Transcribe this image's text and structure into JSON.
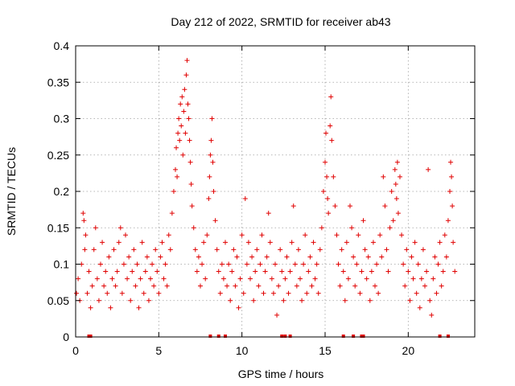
{
  "chart_data": {
    "type": "scatter",
    "title": "Day 212 of 2022, SRMTID for receiver ab43",
    "xlabel": "GPS time / hours",
    "ylabel": "SRMTID / TECUs",
    "xlim": [
      0,
      24
    ],
    "ylim": [
      0,
      0.4
    ],
    "xticks": [
      0,
      5,
      10,
      15,
      20
    ],
    "xtick_labels": [
      "0",
      "5",
      "10",
      "15",
      "20"
    ],
    "yticks": [
      0,
      0.05,
      0.1,
      0.15,
      0.2,
      0.25,
      0.3,
      0.35,
      0.4
    ],
    "ytick_labels": [
      "0",
      "0.05",
      "0.1",
      "0.15",
      "0.2",
      "0.25",
      "0.3",
      "0.35",
      "0.4"
    ],
    "grid": true,
    "marker": "+",
    "color": "#e00000",
    "series": [
      {
        "name": "SRMTID",
        "points": [
          [
            0.05,
            0.06
          ],
          [
            0.15,
            0.08
          ],
          [
            0.25,
            0.05
          ],
          [
            0.35,
            0.1
          ],
          [
            0.45,
            0.17
          ],
          [
            0.5,
            0.16
          ],
          [
            0.55,
            0.12
          ],
          [
            0.6,
            0.14
          ],
          [
            0.7,
            0.06
          ],
          [
            0.8,
            0.09
          ],
          [
            0.9,
            0.04
          ],
          [
            1.0,
            0.07
          ],
          [
            1.1,
            0.12
          ],
          [
            1.2,
            0.15
          ],
          [
            1.3,
            0.08
          ],
          [
            1.4,
            0.05
          ],
          [
            1.5,
            0.1
          ],
          [
            1.6,
            0.13
          ],
          [
            1.7,
            0.07
          ],
          [
            1.8,
            0.09
          ],
          [
            1.9,
            0.06
          ],
          [
            2.0,
            0.11
          ],
          [
            2.1,
            0.04
          ],
          [
            2.2,
            0.08
          ],
          [
            2.3,
            0.12
          ],
          [
            2.4,
            0.07
          ],
          [
            2.5,
            0.09
          ],
          [
            2.6,
            0.13
          ],
          [
            2.7,
            0.15
          ],
          [
            2.8,
            0.06
          ],
          [
            2.9,
            0.1
          ],
          [
            3.0,
            0.14
          ],
          [
            3.1,
            0.08
          ],
          [
            3.2,
            0.11
          ],
          [
            3.3,
            0.05
          ],
          [
            3.4,
            0.09
          ],
          [
            3.5,
            0.12
          ],
          [
            3.6,
            0.07
          ],
          [
            3.7,
            0.1
          ],
          [
            3.8,
            0.04
          ],
          [
            3.9,
            0.08
          ],
          [
            4.0,
            0.13
          ],
          [
            4.1,
            0.06
          ],
          [
            4.2,
            0.09
          ],
          [
            4.3,
            0.11
          ],
          [
            4.4,
            0.05
          ],
          [
            4.5,
            0.08
          ],
          [
            4.6,
            0.1
          ],
          [
            4.7,
            0.07
          ],
          [
            4.8,
            0.12
          ],
          [
            4.9,
            0.09
          ],
          [
            5.0,
            0.06
          ],
          [
            5.1,
            0.11
          ],
          [
            5.2,
            0.13
          ],
          [
            5.3,
            0.08
          ],
          [
            5.4,
            0.1
          ],
          [
            5.5,
            0.07
          ],
          [
            5.6,
            0.14
          ],
          [
            5.7,
            0.12
          ],
          [
            5.8,
            0.17
          ],
          [
            5.9,
            0.2
          ],
          [
            6.0,
            0.23
          ],
          [
            6.05,
            0.26
          ],
          [
            6.1,
            0.22
          ],
          [
            6.15,
            0.28
          ],
          [
            6.2,
            0.3
          ],
          [
            6.25,
            0.27
          ],
          [
            6.3,
            0.32
          ],
          [
            6.35,
            0.29
          ],
          [
            6.4,
            0.33
          ],
          [
            6.45,
            0.25
          ],
          [
            6.5,
            0.31
          ],
          [
            6.55,
            0.34
          ],
          [
            6.6,
            0.28
          ],
          [
            6.65,
            0.36
          ],
          [
            6.7,
            0.38
          ],
          [
            6.75,
            0.32
          ],
          [
            6.8,
            0.3
          ],
          [
            6.85,
            0.27
          ],
          [
            6.9,
            0.24
          ],
          [
            6.95,
            0.21
          ],
          [
            7.0,
            0.18
          ],
          [
            7.1,
            0.15
          ],
          [
            7.2,
            0.12
          ],
          [
            7.3,
            0.09
          ],
          [
            7.4,
            0.11
          ],
          [
            7.5,
            0.07
          ],
          [
            7.6,
            0.1
          ],
          [
            7.7,
            0.13
          ],
          [
            7.8,
            0.08
          ],
          [
            7.9,
            0.14
          ],
          [
            8.0,
            0.19
          ],
          [
            8.05,
            0.22
          ],
          [
            8.1,
            0.25
          ],
          [
            8.15,
            0.27
          ],
          [
            8.2,
            0.3
          ],
          [
            8.25,
            0.24
          ],
          [
            8.3,
            0.2
          ],
          [
            8.4,
            0.16
          ],
          [
            8.5,
            0.12
          ],
          [
            8.6,
            0.09
          ],
          [
            8.7,
            0.06
          ],
          [
            8.8,
            0.1
          ],
          [
            8.9,
            0.08
          ],
          [
            9.0,
            0.13
          ],
          [
            9.1,
            0.07
          ],
          [
            9.2,
            0.1
          ],
          [
            9.3,
            0.05
          ],
          [
            9.4,
            0.09
          ],
          [
            9.5,
            0.12
          ],
          [
            9.6,
            0.07
          ],
          [
            9.7,
            0.11
          ],
          [
            9.8,
            0.04
          ],
          [
            9.9,
            0.08
          ],
          [
            10.0,
            0.14
          ],
          [
            10.1,
            0.06
          ],
          [
            10.2,
            0.19
          ],
          [
            10.3,
            0.1
          ],
          [
            10.4,
            0.13
          ],
          [
            10.5,
            0.08
          ],
          [
            10.6,
            0.11
          ],
          [
            10.7,
            0.05
          ],
          [
            10.8,
            0.09
          ],
          [
            10.9,
            0.12
          ],
          [
            11.0,
            0.07
          ],
          [
            11.1,
            0.1
          ],
          [
            11.2,
            0.14
          ],
          [
            11.3,
            0.06
          ],
          [
            11.4,
            0.09
          ],
          [
            11.5,
            0.11
          ],
          [
            11.6,
            0.17
          ],
          [
            11.7,
            0.13
          ],
          [
            11.8,
            0.08
          ],
          [
            11.9,
            0.06
          ],
          [
            12.0,
            0.1
          ],
          [
            12.1,
            0.03
          ],
          [
            12.2,
            0.07
          ],
          [
            12.3,
            0.12
          ],
          [
            12.4,
            0.09
          ],
          [
            12.5,
            0.05
          ],
          [
            12.6,
            0.08
          ],
          [
            12.7,
            0.11
          ],
          [
            12.8,
            0.06
          ],
          [
            12.9,
            0.09
          ],
          [
            13.0,
            0.13
          ],
          [
            13.1,
            0.18
          ],
          [
            13.2,
            0.1
          ],
          [
            13.3,
            0.07
          ],
          [
            13.4,
            0.12
          ],
          [
            13.5,
            0.08
          ],
          [
            13.6,
            0.05
          ],
          [
            13.7,
            0.1
          ],
          [
            13.8,
            0.14
          ],
          [
            13.9,
            0.06
          ],
          [
            14.0,
            0.09
          ],
          [
            14.1,
            0.11
          ],
          [
            14.2,
            0.07
          ],
          [
            14.3,
            0.13
          ],
          [
            14.4,
            0.08
          ],
          [
            14.5,
            0.1
          ],
          [
            14.6,
            0.06
          ],
          [
            14.7,
            0.12
          ],
          [
            14.8,
            0.15
          ],
          [
            14.9,
            0.2
          ],
          [
            15.0,
            0.24
          ],
          [
            15.05,
            0.28
          ],
          [
            15.1,
            0.22
          ],
          [
            15.15,
            0.19
          ],
          [
            15.2,
            0.17
          ],
          [
            15.3,
            0.29
          ],
          [
            15.35,
            0.33
          ],
          [
            15.4,
            0.27
          ],
          [
            15.5,
            0.22
          ],
          [
            15.6,
            0.18
          ],
          [
            15.7,
            0.14
          ],
          [
            15.8,
            0.1
          ],
          [
            15.9,
            0.07
          ],
          [
            16.0,
            0.12
          ],
          [
            16.1,
            0.09
          ],
          [
            16.2,
            0.05
          ],
          [
            16.3,
            0.13
          ],
          [
            16.4,
            0.08
          ],
          [
            16.5,
            0.18
          ],
          [
            16.6,
            0.15
          ],
          [
            16.7,
            0.11
          ],
          [
            16.8,
            0.07
          ],
          [
            16.9,
            0.1
          ],
          [
            17.0,
            0.14
          ],
          [
            17.1,
            0.06
          ],
          [
            17.2,
            0.09
          ],
          [
            17.3,
            0.16
          ],
          [
            17.4,
            0.12
          ],
          [
            17.5,
            0.08
          ],
          [
            17.6,
            0.11
          ],
          [
            17.7,
            0.05
          ],
          [
            17.8,
            0.09
          ],
          [
            17.9,
            0.13
          ],
          [
            18.0,
            0.07
          ],
          [
            18.1,
            0.1
          ],
          [
            18.2,
            0.06
          ],
          [
            18.3,
            0.14
          ],
          [
            18.4,
            0.11
          ],
          [
            18.5,
            0.22
          ],
          [
            18.6,
            0.18
          ],
          [
            18.7,
            0.12
          ],
          [
            18.8,
            0.09
          ],
          [
            18.9,
            0.15
          ],
          [
            19.0,
            0.2
          ],
          [
            19.1,
            0.16
          ],
          [
            19.2,
            0.23
          ],
          [
            19.25,
            0.21
          ],
          [
            19.3,
            0.19
          ],
          [
            19.35,
            0.24
          ],
          [
            19.4,
            0.17
          ],
          [
            19.5,
            0.22
          ],
          [
            19.6,
            0.14
          ],
          [
            19.7,
            0.1
          ],
          [
            19.8,
            0.07
          ],
          [
            19.9,
            0.12
          ],
          [
            20.0,
            0.09
          ],
          [
            20.1,
            0.05
          ],
          [
            20.2,
            0.11
          ],
          [
            20.3,
            0.08
          ],
          [
            20.4,
            0.13
          ],
          [
            20.5,
            0.06
          ],
          [
            20.6,
            0.1
          ],
          [
            20.7,
            0.04
          ],
          [
            20.8,
            0.08
          ],
          [
            20.9,
            0.12
          ],
          [
            21.0,
            0.07
          ],
          [
            21.1,
            0.09
          ],
          [
            21.2,
            0.23
          ],
          [
            21.3,
            0.05
          ],
          [
            21.4,
            0.03
          ],
          [
            21.5,
            0.08
          ],
          [
            21.6,
            0.11
          ],
          [
            21.7,
            0.06
          ],
          [
            21.8,
            0.1
          ],
          [
            21.9,
            0.13
          ],
          [
            22.0,
            0.07
          ],
          [
            22.1,
            0.09
          ],
          [
            22.2,
            0.14
          ],
          [
            22.3,
            0.11
          ],
          [
            22.4,
            0.16
          ],
          [
            22.5,
            0.2
          ],
          [
            22.55,
            0.24
          ],
          [
            22.6,
            0.22
          ],
          [
            22.65,
            0.18
          ],
          [
            22.7,
            0.13
          ],
          [
            22.8,
            0.09
          ]
        ],
        "zero_values_x": [
          0.8,
          0.9,
          8.1,
          8.6,
          9.0,
          12.4,
          12.6,
          12.9,
          16.1,
          16.7,
          17.2,
          17.3,
          21.9,
          22.4
        ]
      }
    ]
  }
}
